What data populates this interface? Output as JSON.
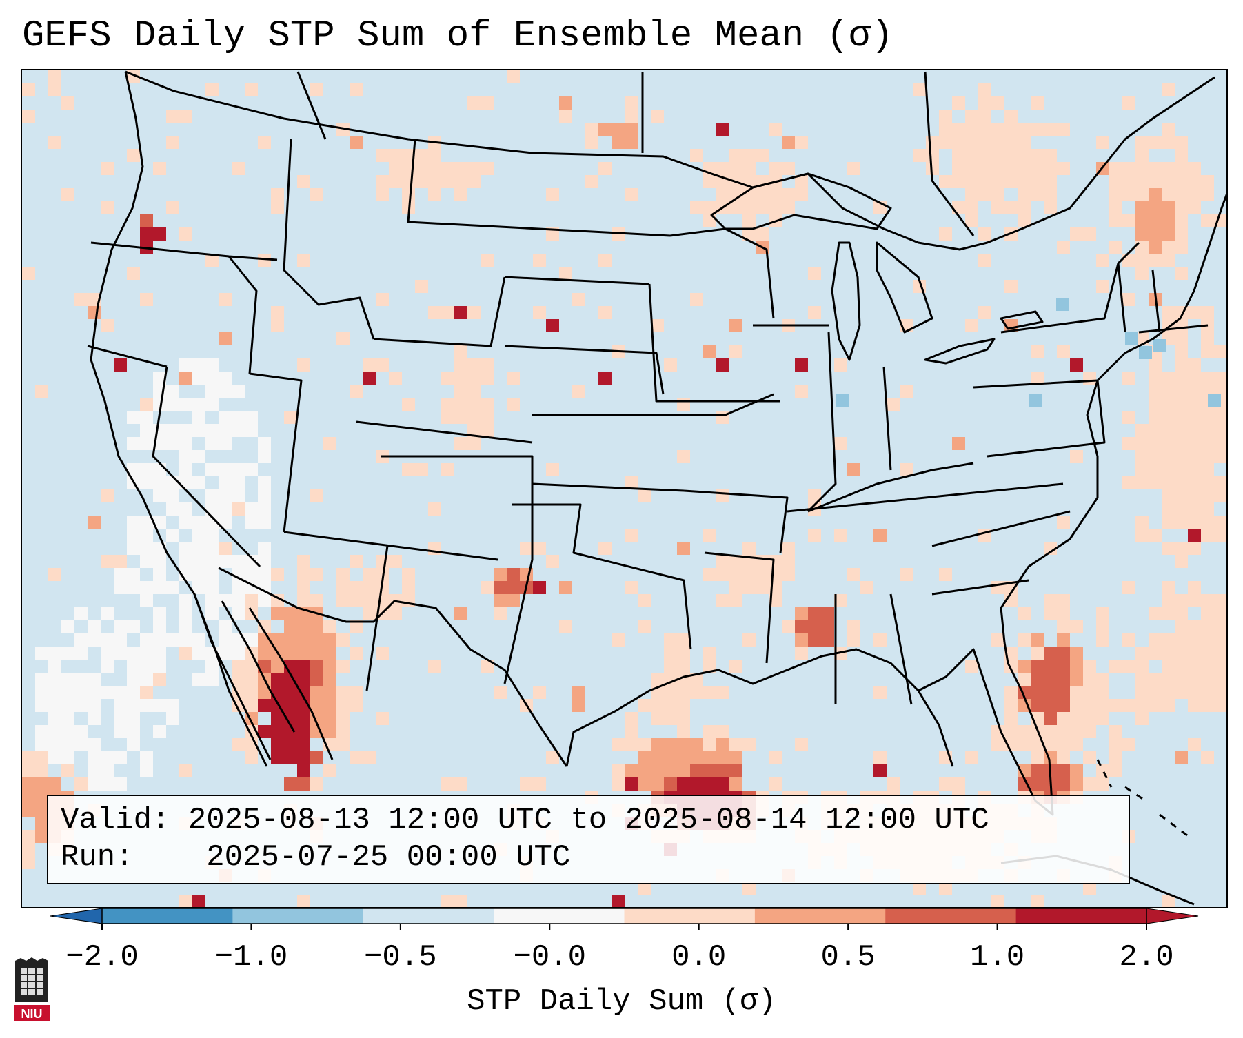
{
  "title": "GEFS Daily STP Sum of Ensemble Mean (σ)",
  "info": {
    "valid_label": "Valid:",
    "valid_value": "2025-08-13 12:00 UTC to 2025-08-14 12:00 UTC",
    "run_label": "Run:",
    "run_value": "2025-07-25 00:00 UTC"
  },
  "colorbar": {
    "label": "STP Daily Sum (σ)",
    "ticks": [
      "−2.0",
      "−1.0",
      "−0.5",
      "−0.0",
      "0.0",
      "0.5",
      "1.0",
      "2.0"
    ],
    "colors": [
      "#4393c3",
      "#92c5de",
      "#d1e5f0",
      "#f7f7f7",
      "#fddbc7",
      "#f4a582",
      "#d6604d",
      "#b2182b"
    ],
    "extend_low_color": "#2166ac",
    "extend_high_color": "#b2182b"
  },
  "map": {
    "background_color": "#d1e5f0",
    "border_color": "#000000"
  },
  "logo": {
    "text": "NIU",
    "color": "#c8102e"
  }
}
